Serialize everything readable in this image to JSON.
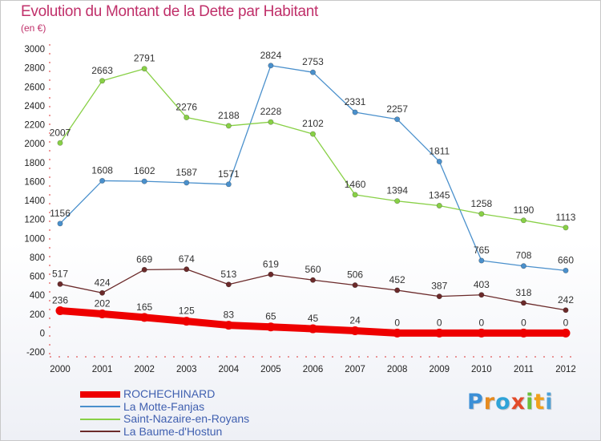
{
  "title": "Evolution du Montant de la Dette par Habitant",
  "subtitle": "(en €)",
  "logo": {
    "letters": [
      "P",
      "r",
      "o",
      "x",
      "i",
      "t",
      "i"
    ],
    "colors": [
      "#3c8fd6",
      "#e68a1e",
      "#2fa3d8",
      "#e24b2a",
      "#6cbf3a",
      "#f0a01c",
      "#4aa0d8"
    ]
  },
  "chart_data": {
    "type": "line",
    "title": "Evolution du Montant de la Dette par Habitant",
    "subtitle": "(en €)",
    "x": [
      "2000",
      "2001",
      "2002",
      "2003",
      "2004",
      "2005",
      "2006",
      "2007",
      "2008",
      "2009",
      "2010",
      "2011",
      "2012"
    ],
    "ylim": [
      -200,
      3000
    ],
    "yticks": [
      -200,
      0,
      200,
      400,
      600,
      800,
      1000,
      1200,
      1400,
      1600,
      1800,
      2000,
      2200,
      2400,
      2600,
      2800,
      3000
    ],
    "grid": false,
    "legend_position": "bottom-left",
    "series": [
      {
        "name": "ROCHECHINARD",
        "color": "#ee0000",
        "values": [
          236,
          202,
          165,
          125,
          83,
          65,
          45,
          24,
          0,
          0,
          0,
          0,
          0
        ]
      },
      {
        "name": "La Motte-Fanjas",
        "color": "#4a90cc",
        "values": [
          1156,
          1608,
          1602,
          1587,
          1571,
          2824,
          2753,
          2331,
          2257,
          1811,
          765,
          708,
          660
        ]
      },
      {
        "name": "Saint-Nazaire-en-Royans",
        "color": "#88d046",
        "values": [
          2007,
          2663,
          2791,
          2276,
          2188,
          2228,
          2102,
          1460,
          1394,
          1345,
          1258,
          1190,
          1113
        ]
      },
      {
        "name": "La Baume-d'Hostun",
        "color": "#6b2a2a",
        "values": [
          517,
          424,
          669,
          674,
          513,
          619,
          560,
          506,
          452,
          387,
          403,
          318,
          242
        ]
      }
    ]
  }
}
